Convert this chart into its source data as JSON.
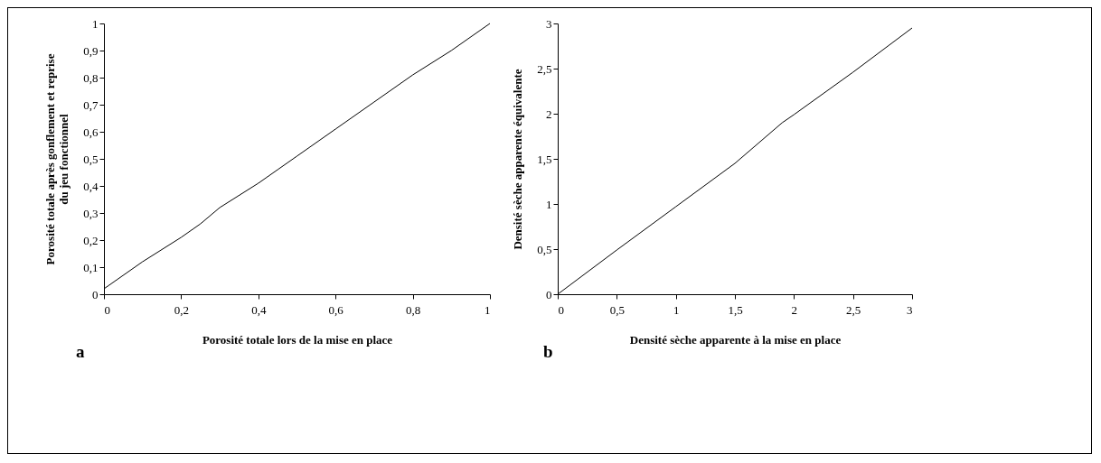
{
  "chart_data": [
    {
      "type": "line",
      "xlabel": "Porosité totale lors de la mise en place",
      "ylabel": "Porosité totale après gonflement et reprise du jeu fonctionnel",
      "annotations": [
        "a"
      ],
      "x": [
        0,
        0.1,
        0.2,
        0.25,
        0.3,
        0.4,
        0.45,
        0.5,
        0.6,
        0.7,
        0.8,
        0.9,
        1
      ],
      "series": [
        {
          "color": "#000000",
          "values": [
            0.02,
            0.12,
            0.21,
            0.26,
            0.32,
            0.41,
            0.46,
            0.51,
            0.61,
            0.71,
            0.81,
            0.9,
            1
          ]
        }
      ],
      "xlim": [
        0,
        1
      ],
      "ylim": [
        0,
        1
      ],
      "xticks": [
        0,
        {
          "value": 0.2,
          "label": "0,2"
        },
        {
          "value": 0.4,
          "label": "0,4"
        },
        {
          "value": 0.6,
          "label": "0,6"
        },
        {
          "value": 0.8,
          "label": "0,8"
        },
        1
      ],
      "yticks": [
        0,
        {
          "value": 0.1,
          "label": "0,1"
        },
        {
          "value": 0.2,
          "label": "0,2"
        },
        {
          "value": 0.3,
          "label": "0,3"
        },
        {
          "value": 0.4,
          "label": "0,4"
        },
        {
          "value": 0.5,
          "label": "0,5"
        },
        {
          "value": 0.6,
          "label": "0,6"
        },
        {
          "value": 0.7,
          "label": "0,7"
        },
        {
          "value": 0.8,
          "label": "0,8"
        },
        {
          "value": 0.9,
          "label": "0,9"
        },
        1
      ],
      "grid": false,
      "legend": false,
      "marker": "none",
      "line_style": "solid"
    },
    {
      "type": "line",
      "xlabel": "Densité sèche apparente à la mise en place",
      "ylabel": "Densité sèche apparente équivalente",
      "annotations": [
        "b"
      ],
      "x": [
        0,
        0.5,
        1,
        1.5,
        1.9,
        2,
        2.5,
        3
      ],
      "series": [
        {
          "color": "#000000",
          "values": [
            0,
            0.49,
            0.97,
            1.45,
            1.9,
            1.99,
            2.46,
            2.95
          ]
        }
      ],
      "xlim": [
        0,
        3
      ],
      "ylim": [
        0,
        3
      ],
      "xticks": [
        0,
        {
          "value": 0.5,
          "label": "0,5"
        },
        1,
        {
          "value": 1.5,
          "label": "1,5"
        },
        2,
        {
          "value": 2.5,
          "label": "2,5"
        },
        3
      ],
      "yticks": [
        0,
        {
          "value": 0.5,
          "label": "0,5"
        },
        1,
        {
          "value": 1.5,
          "label": "1,5"
        },
        2,
        {
          "value": 2.5,
          "label": "2,5"
        },
        3
      ],
      "grid": false,
      "legend": false,
      "marker": "none",
      "line_style": "solid"
    }
  ]
}
